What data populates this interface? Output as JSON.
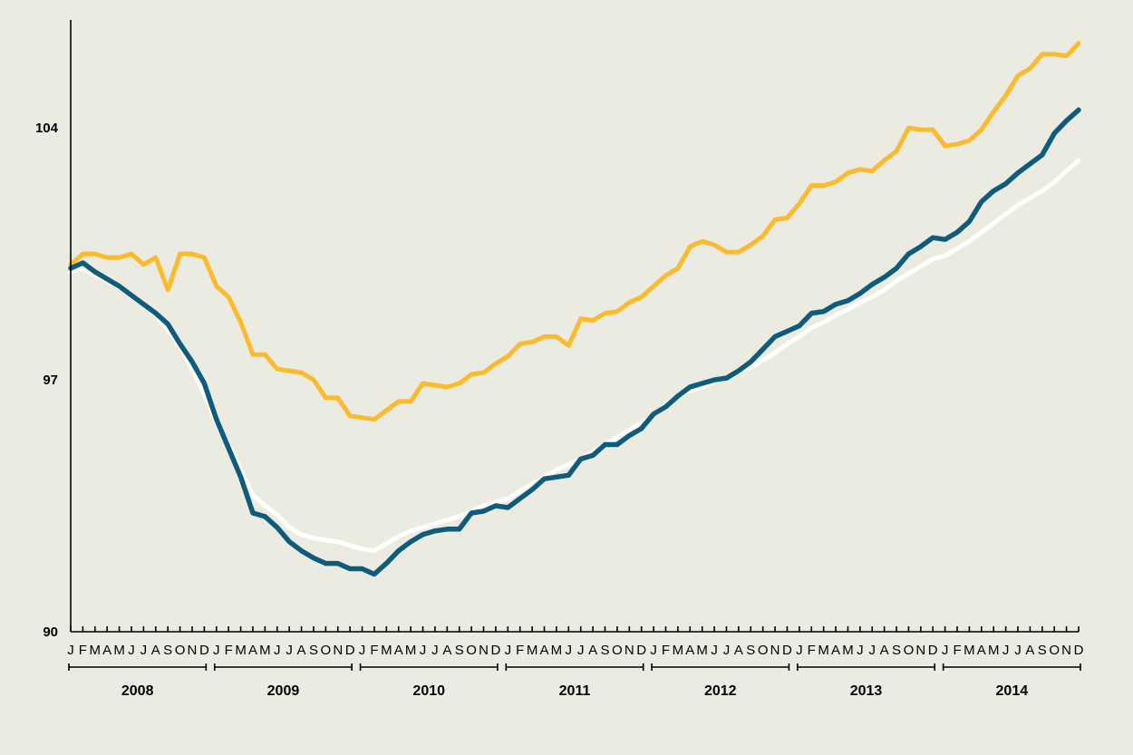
{
  "chart_data": {
    "type": "line",
    "title": "",
    "xlabel": "",
    "ylabel": "",
    "x_start": "2008-01",
    "x_end": "2014-12",
    "ylim": [
      90,
      107
    ],
    "yticks": [
      90,
      97,
      104
    ],
    "month_labels": [
      "J",
      "F",
      "M",
      "A",
      "M",
      "J",
      "J",
      "A",
      "S",
      "O",
      "N",
      "D"
    ],
    "years": [
      "2008",
      "2009",
      "2010",
      "2011",
      "2012",
      "2013",
      "2014"
    ],
    "grid": false,
    "legend": "none",
    "series": [
      {
        "color": "#fbbb2c",
        "values": [
          100.2,
          100.5,
          100.5,
          100.4,
          100.4,
          100.5,
          100.2,
          100.4,
          99.5,
          100.5,
          100.5,
          100.4,
          99.6,
          99.3,
          98.6,
          97.7,
          97.7,
          97.3,
          97.25,
          97.2,
          97.0,
          96.5,
          96.5,
          96.0,
          95.95,
          95.9,
          96.15,
          96.4,
          96.4,
          96.9,
          96.85,
          96.8,
          96.9,
          97.15,
          97.2,
          97.45,
          97.65,
          98.0,
          98.05,
          98.2,
          98.2,
          97.95,
          98.7,
          98.65,
          98.85,
          98.9,
          99.15,
          99.3,
          99.6,
          99.9,
          100.1,
          100.7,
          100.85,
          100.75,
          100.55,
          100.55,
          100.75,
          101.0,
          101.45,
          101.5,
          101.9,
          102.4,
          102.4,
          102.5,
          102.75,
          102.85,
          102.8,
          103.1,
          103.35,
          104.0,
          103.95,
          103.95,
          103.5,
          103.55,
          103.65,
          103.95,
          104.45,
          104.9,
          105.45,
          105.65,
          106.05,
          106.05,
          106.0,
          106.35
        ]
      },
      {
        "color": "#ffffff",
        "values": [
          100.0,
          100.1,
          99.9,
          99.75,
          99.55,
          99.3,
          99.1,
          98.8,
          98.4,
          97.9,
          97.3,
          96.6,
          95.8,
          95.2,
          94.5,
          93.8,
          93.5,
          93.25,
          92.9,
          92.7,
          92.6,
          92.55,
          92.5,
          92.4,
          92.3,
          92.25,
          92.45,
          92.65,
          92.8,
          92.9,
          93.0,
          93.1,
          93.2,
          93.35,
          93.5,
          93.6,
          93.7,
          93.9,
          94.1,
          94.3,
          94.5,
          94.65,
          94.8,
          95.0,
          95.2,
          95.4,
          95.6,
          95.8,
          96.0,
          96.3,
          96.55,
          96.7,
          96.8,
          96.95,
          97.05,
          97.2,
          97.35,
          97.55,
          97.75,
          98.0,
          98.2,
          98.45,
          98.6,
          98.8,
          98.95,
          99.15,
          99.3,
          99.5,
          99.75,
          99.95,
          100.15,
          100.35,
          100.45,
          100.65,
          100.85,
          101.1,
          101.35,
          101.6,
          101.85,
          102.05,
          102.25,
          102.5,
          102.8,
          103.1
        ]
      },
      {
        "color": "#0e5c7c",
        "values": [
          100.1,
          100.25,
          100.0,
          99.8,
          99.6,
          99.35,
          99.1,
          98.85,
          98.55,
          98.0,
          97.5,
          96.9,
          95.9,
          95.1,
          94.3,
          93.3,
          93.2,
          92.9,
          92.5,
          92.25,
          92.05,
          91.9,
          91.9,
          91.75,
          91.75,
          91.6,
          91.9,
          92.25,
          92.5,
          92.7,
          92.8,
          92.85,
          92.85,
          93.3,
          93.35,
          93.5,
          93.45,
          93.7,
          93.95,
          94.25,
          94.3,
          94.35,
          94.8,
          94.9,
          95.2,
          95.2,
          95.45,
          95.65,
          96.05,
          96.25,
          96.55,
          96.8,
          96.9,
          97.0,
          97.05,
          97.25,
          97.5,
          97.85,
          98.2,
          98.35,
          98.5,
          98.85,
          98.9,
          99.1,
          99.2,
          99.4,
          99.65,
          99.85,
          100.1,
          100.5,
          100.7,
          100.95,
          100.9,
          101.1,
          101.4,
          101.95,
          102.25,
          102.45,
          102.75,
          103.0,
          103.25,
          103.85,
          104.2,
          104.5
        ]
      }
    ]
  }
}
